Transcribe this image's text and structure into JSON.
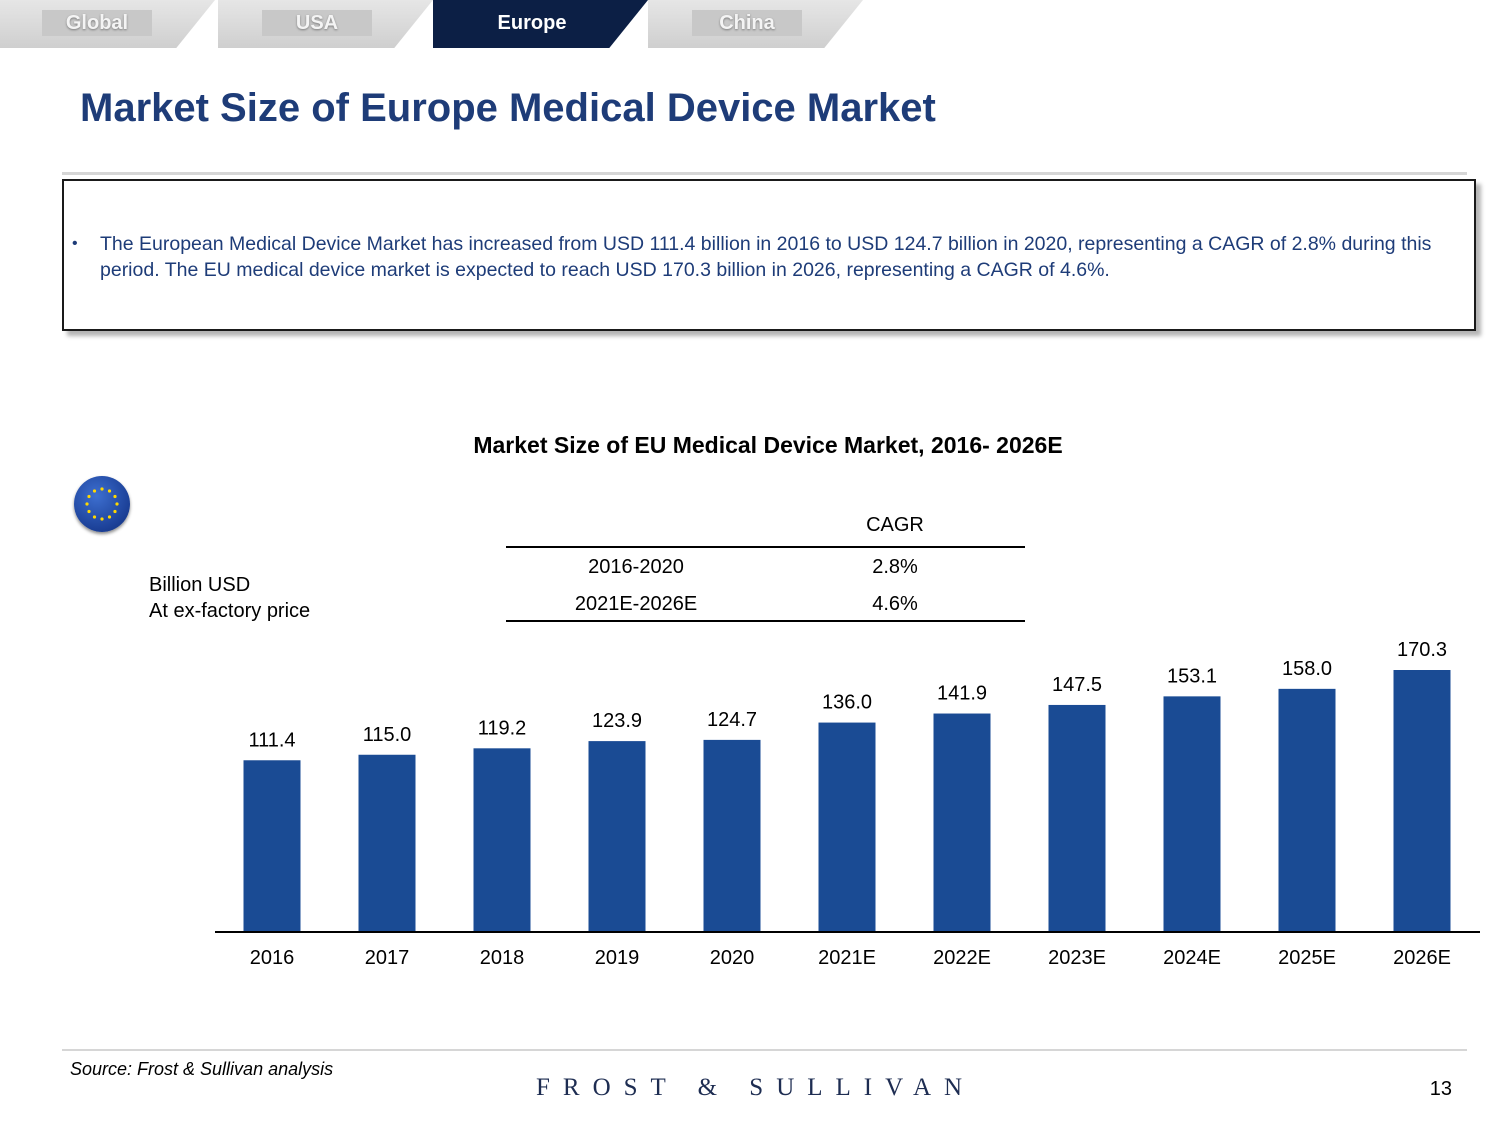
{
  "tabs": [
    {
      "label": "Global",
      "active": false
    },
    {
      "label": "USA",
      "active": false
    },
    {
      "label": "Europe",
      "active": true
    },
    {
      "label": "China",
      "active": false
    }
  ],
  "page": {
    "title": "Market Size of Europe Medical Device Market",
    "summary": "The European Medical Device Market has increased from USD 111.4 billion in 2016 to USD 124.7 billion in 2020, representing a CAGR of 2.8% during this period. The EU medical device market is expected to reach USD 170.3 billion in 2026, representing a CAGR of 4.6%.",
    "bullet": "•",
    "source": "Source: Frost & Sullivan analysis",
    "brand": "FROST & SULLIVAN",
    "page_number": "13"
  },
  "colors": {
    "bar": "#1a4b94",
    "title": "#1e3c78",
    "active_tab": "#0c1f45"
  },
  "icons": {
    "flag": "eu-flag-icon"
  },
  "chart_data": {
    "type": "bar",
    "title": "Market Size of EU Medical Device Market, 2016- 2026E",
    "unit_line1": "Billion USD",
    "unit_line2": "At ex-factory price",
    "categories": [
      "2016",
      "2017",
      "2018",
      "2019",
      "2020",
      "2021E",
      "2022E",
      "2023E",
      "2024E",
      "2025E",
      "2026E"
    ],
    "values": [
      111.4,
      115.0,
      119.2,
      123.9,
      124.7,
      136.0,
      141.9,
      147.5,
      153.1,
      158.0,
      170.3
    ],
    "value_labels": [
      "111.4",
      "115.0",
      "119.2",
      "123.9",
      "124.7",
      "136.0",
      "141.9",
      "147.5",
      "153.1",
      "158.0",
      "170.3"
    ],
    "ylim": [
      0,
      175
    ],
    "grid": false,
    "cagr_table": {
      "header": "CAGR",
      "rows": [
        {
          "period": "2016-2020",
          "value": "2.8%"
        },
        {
          "period": "2021E-2026E",
          "value": "4.6%"
        }
      ]
    }
  }
}
